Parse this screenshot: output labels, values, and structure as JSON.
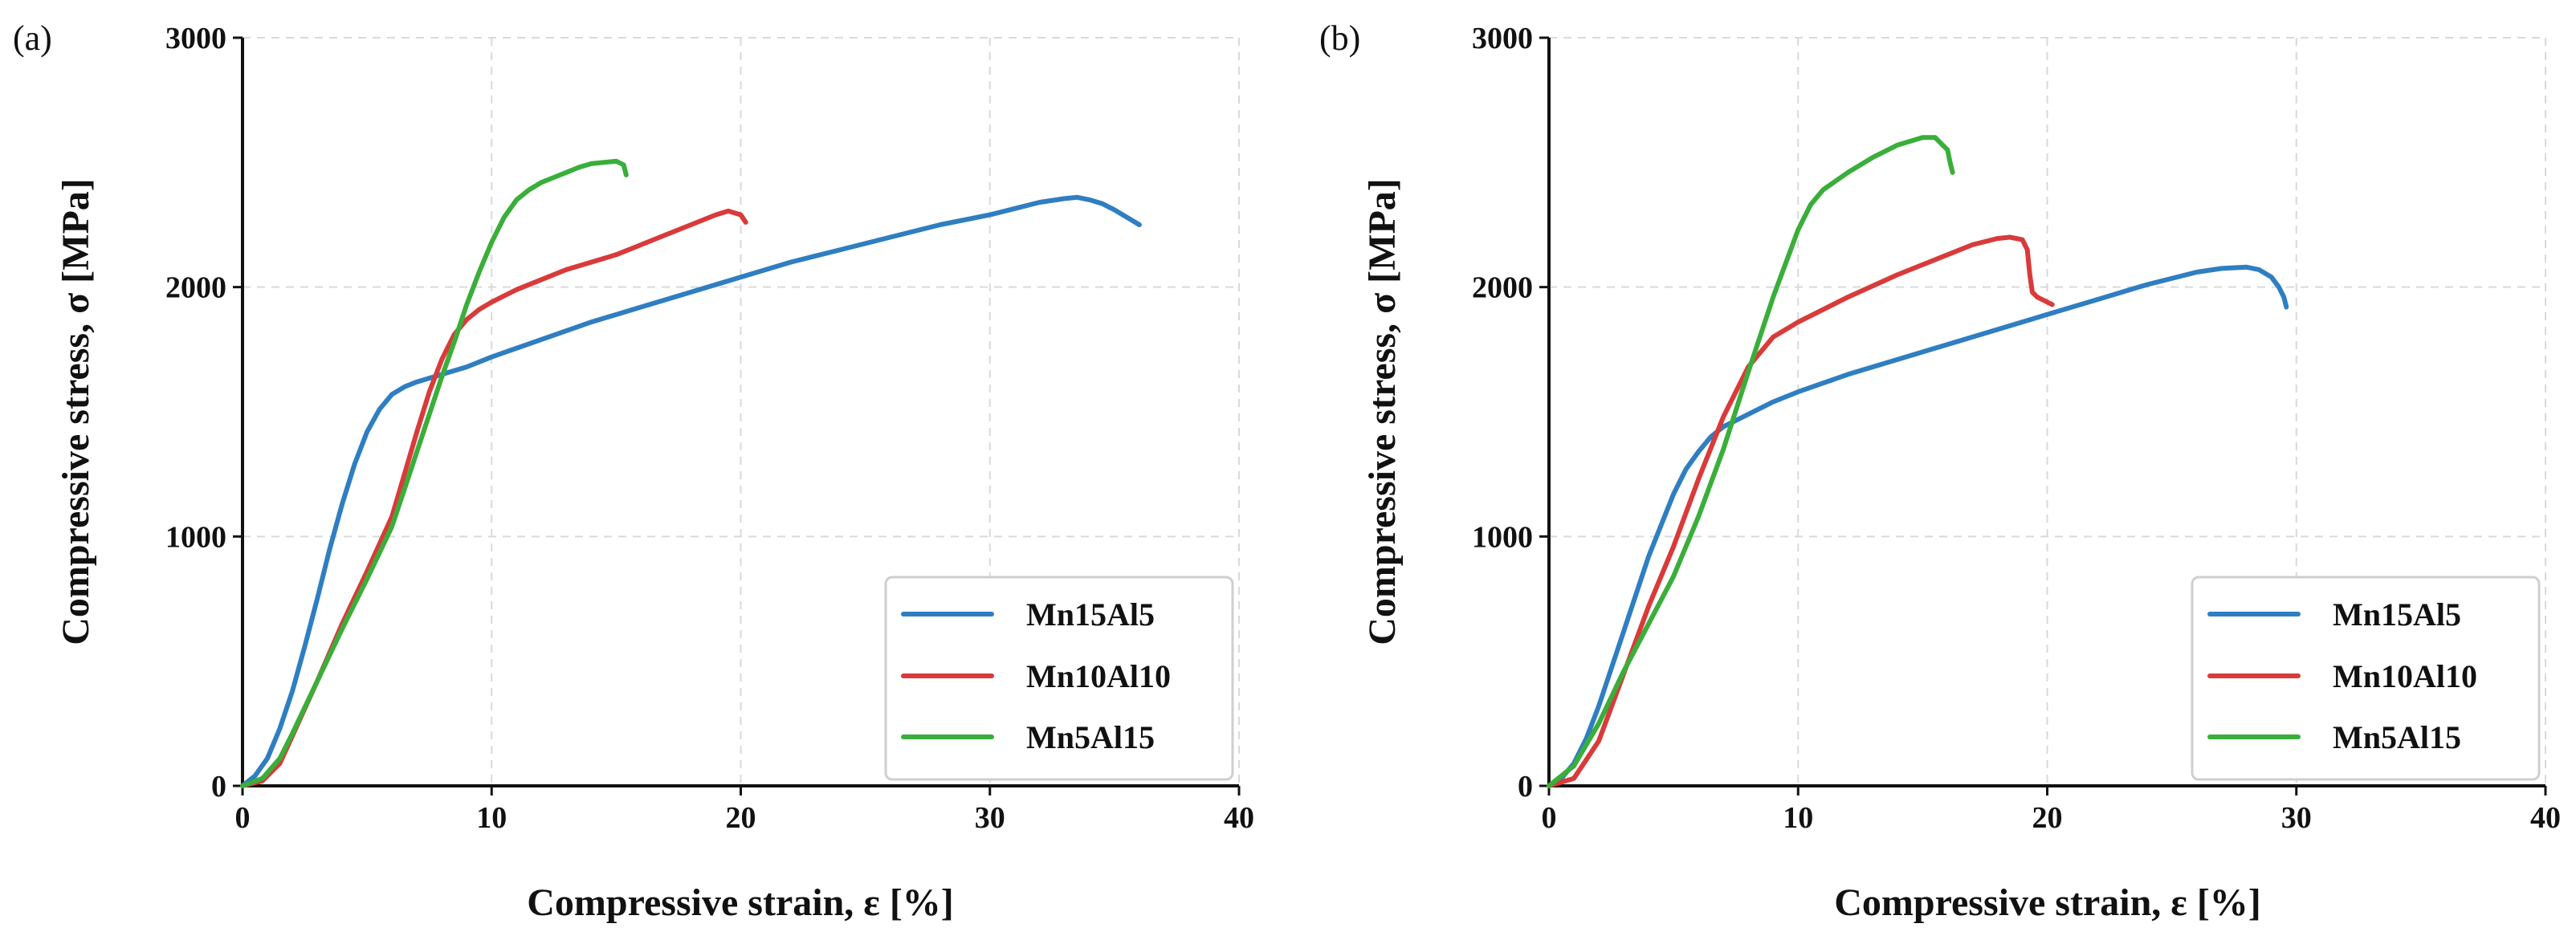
{
  "chart_data": [
    {
      "type": "line",
      "panel_label": "(a)",
      "title": "",
      "xlabel": "Compressive strain, ε [%]",
      "ylabel": "Compressive stress, σ [MPa]",
      "xlim": [
        0,
        40
      ],
      "ylim": [
        0,
        3000
      ],
      "xticks": [
        0,
        10,
        20,
        30,
        40
      ],
      "yticks": [
        0,
        1000,
        2000,
        3000
      ],
      "grid": true,
      "legend_position": "bottom-right",
      "series": [
        {
          "name": "Mn15Al5",
          "color": "#2f7ec1",
          "x": [
            0,
            0.5,
            1,
            1.5,
            2,
            2.5,
            3,
            3.5,
            4,
            4.5,
            5,
            5.5,
            6,
            6.5,
            7,
            7.5,
            8,
            9,
            10,
            12,
            14,
            16,
            18,
            20,
            22,
            24,
            26,
            28,
            30,
            32,
            33,
            33.5,
            34,
            34.5,
            35,
            35.5,
            36
          ],
          "y": [
            0,
            40,
            110,
            230,
            380,
            560,
            750,
            950,
            1130,
            1290,
            1420,
            1510,
            1570,
            1600,
            1620,
            1635,
            1650,
            1680,
            1720,
            1790,
            1860,
            1920,
            1980,
            2040,
            2100,
            2150,
            2200,
            2250,
            2290,
            2340,
            2355,
            2360,
            2350,
            2335,
            2310,
            2280,
            2250
          ]
        },
        {
          "name": "Mn10Al10",
          "color": "#d93a3a",
          "x": [
            0,
            0.8,
            1.5,
            2,
            3,
            4,
            5,
            6,
            6.5,
            7,
            7.5,
            8,
            8.5,
            9,
            9.5,
            10,
            11,
            12,
            13,
            14,
            15,
            16,
            17,
            18,
            19,
            19.5,
            20,
            20.2
          ],
          "y": [
            0,
            20,
            90,
            200,
            420,
            650,
            860,
            1080,
            1250,
            1420,
            1580,
            1710,
            1810,
            1870,
            1910,
            1940,
            1990,
            2030,
            2070,
            2100,
            2130,
            2170,
            2210,
            2250,
            2290,
            2305,
            2290,
            2260
          ]
        },
        {
          "name": "Mn5Al15",
          "color": "#3aae3a",
          "x": [
            0,
            0.8,
            1.5,
            2,
            3,
            4,
            5,
            6,
            6.5,
            7,
            7.5,
            8,
            8.5,
            9,
            9.5,
            10,
            10.5,
            11,
            11.5,
            12,
            12.5,
            13,
            13.5,
            14,
            14.5,
            15,
            15.3,
            15.4
          ],
          "y": [
            0,
            30,
            110,
            210,
            420,
            630,
            830,
            1040,
            1190,
            1340,
            1490,
            1640,
            1780,
            1930,
            2060,
            2180,
            2280,
            2350,
            2390,
            2420,
            2440,
            2460,
            2480,
            2495,
            2500,
            2505,
            2490,
            2450
          ]
        }
      ]
    },
    {
      "type": "line",
      "panel_label": "(b)",
      "title": "",
      "xlabel": "Compressive strain, ε [%]",
      "ylabel": "Compressive stress, σ [MPa]",
      "xlim": [
        0,
        40
      ],
      "ylim": [
        0,
        3000
      ],
      "xticks": [
        0,
        10,
        20,
        30,
        40
      ],
      "yticks": [
        0,
        1000,
        2000,
        3000
      ],
      "grid": true,
      "legend_position": "bottom-right",
      "series": [
        {
          "name": "Mn15Al5",
          "color": "#2f7ec1",
          "x": [
            0,
            0.5,
            1,
            1.5,
            2,
            3,
            4,
            5,
            5.5,
            6,
            6.5,
            7,
            8,
            9,
            10,
            12,
            14,
            16,
            18,
            20,
            22,
            24,
            26,
            27,
            28,
            28.5,
            29,
            29.3,
            29.5,
            29.6
          ],
          "y": [
            0,
            30,
            90,
            190,
            320,
            620,
            920,
            1170,
            1270,
            1340,
            1400,
            1440,
            1490,
            1540,
            1580,
            1650,
            1710,
            1770,
            1830,
            1890,
            1950,
            2010,
            2060,
            2075,
            2080,
            2070,
            2040,
            2000,
            1960,
            1920
          ]
        },
        {
          "name": "Mn10Al10",
          "color": "#d93a3a",
          "x": [
            0,
            1,
            2,
            3,
            4,
            5,
            6,
            7,
            8,
            9,
            10,
            12,
            14,
            16,
            17,
            18,
            18.5,
            19,
            19.2,
            19.3,
            19.4,
            19.6,
            20,
            20.2
          ],
          "y": [
            0,
            30,
            180,
            450,
            720,
            960,
            1230,
            1480,
            1680,
            1800,
            1860,
            1960,
            2050,
            2130,
            2170,
            2195,
            2200,
            2190,
            2150,
            2050,
            1980,
            1960,
            1940,
            1930
          ]
        },
        {
          "name": "Mn5Al15",
          "color": "#3aae3a",
          "x": [
            0,
            1,
            2,
            3,
            4,
            5,
            6,
            7,
            8,
            9,
            10,
            10.5,
            11,
            12,
            13,
            14,
            15,
            15.5,
            15.8,
            16,
            16.1,
            16.2
          ],
          "y": [
            0,
            80,
            250,
            460,
            650,
            840,
            1080,
            1350,
            1660,
            1960,
            2230,
            2330,
            2390,
            2460,
            2520,
            2570,
            2600,
            2600,
            2570,
            2550,
            2500,
            2460
          ]
        }
      ]
    }
  ]
}
